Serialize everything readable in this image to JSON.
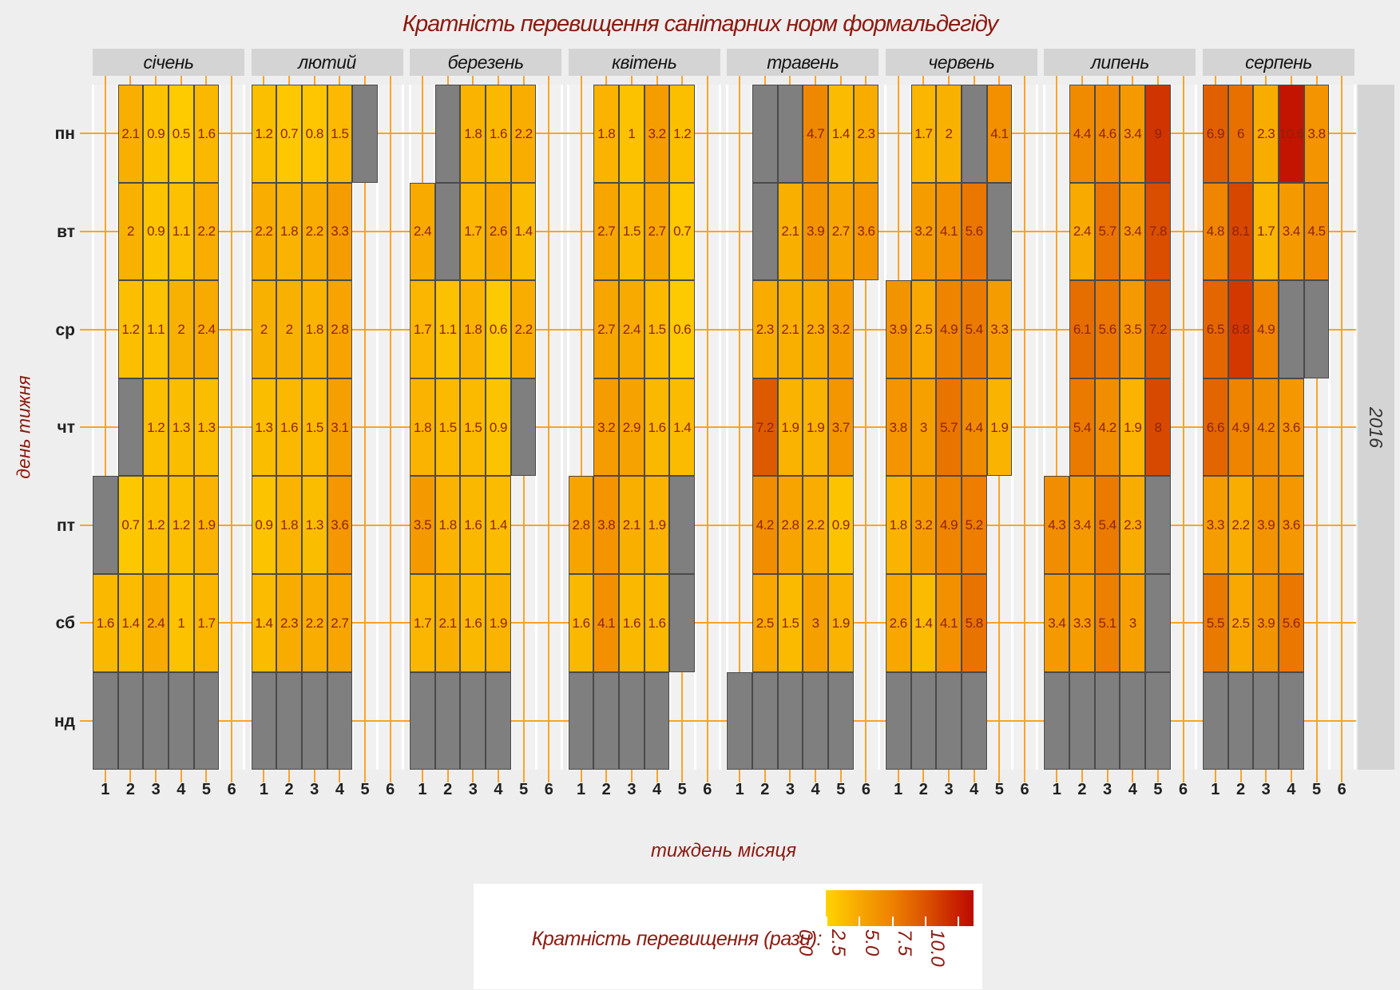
{
  "title": "Кратність перевищення санітарних норм формальдегіду",
  "y_axis_title": "день тижня",
  "x_axis_title": "тиждень місяця",
  "facet_right_label": "2016",
  "legend": {
    "title": "Кратність перевищення (рази):",
    "ticks": [
      "0.0",
      "2.5",
      "5.0",
      "7.5",
      "10.0"
    ],
    "tick_values": [
      0,
      2.5,
      5,
      7.5,
      10
    ],
    "scale_max": 11.2
  },
  "colors": {
    "background": "#efeeee",
    "panel_background": "#f2f1f1",
    "strip_background": "#d4d4d4",
    "na_cell": "#7f7f7f",
    "cell_border": "#4a4a4a",
    "grid_orange": "#faa428",
    "grid_white": "#ffffff",
    "title_color": "#8c1a10",
    "cell_text": "#8e2301",
    "axis_label": "#202020",
    "gradient_stops": [
      [
        0,
        "#ffd400"
      ],
      [
        2.5,
        "#f8a800"
      ],
      [
        5,
        "#ee8200"
      ],
      [
        7.5,
        "#dc5400"
      ],
      [
        10,
        "#c81e00"
      ],
      [
        11,
        "#be0e00"
      ]
    ]
  },
  "chart_data": {
    "type": "heatmap",
    "title": "Кратність перевищення санітарних норм формальдегіду",
    "xlabel": "тиждень місяця",
    "ylabel": "день тижня",
    "year": "2016",
    "legend_title": "Кратність перевищення (рази):",
    "legend_range": [
      0,
      10
    ],
    "day_rows": [
      "пн",
      "вт",
      "ср",
      "чт",
      "пт",
      "сб",
      "нд"
    ],
    "week_columns": [
      "1",
      "2",
      "3",
      "4",
      "5",
      "6"
    ],
    "na_note": "NA = сірі клітинки (немає даних)",
    "months": [
      {
        "name": "січень",
        "rows": [
          [
            null,
            "2.1",
            "0.9",
            "0.5",
            "1.6",
            null
          ],
          [
            null,
            "2",
            "0.9",
            "1.1",
            "2.2",
            null
          ],
          [
            null,
            "1.2",
            "1.1",
            "2",
            "2.4",
            null
          ],
          [
            null,
            "NA",
            "1.2",
            "1.3",
            "1.3",
            null
          ],
          [
            "NA",
            "0.7",
            "1.2",
            "1.2",
            "1.9",
            null
          ],
          [
            "1.6",
            "1.4",
            "2.4",
            "1",
            "1.7",
            null
          ],
          [
            "NA",
            "NA",
            "NA",
            "NA",
            "NA",
            null
          ]
        ]
      },
      {
        "name": "лютий",
        "rows": [
          [
            "1.2",
            "0.7",
            "0.8",
            "1.5",
            "NA",
            null
          ],
          [
            "2.2",
            "1.8",
            "2.2",
            "3.3",
            null,
            null
          ],
          [
            "2",
            "2",
            "1.8",
            "2.8",
            null,
            null
          ],
          [
            "1.3",
            "1.6",
            "1.5",
            "3.1",
            null,
            null
          ],
          [
            "0.9",
            "1.8",
            "1.3",
            "3.6",
            null,
            null
          ],
          [
            "1.4",
            "2.3",
            "2.2",
            "2.7",
            null,
            null
          ],
          [
            "NA",
            "NA",
            "NA",
            "NA",
            null,
            null
          ]
        ]
      },
      {
        "name": "березень",
        "rows": [
          [
            null,
            "NA",
            "1.8",
            "1.6",
            "2.2",
            null
          ],
          [
            "2.4",
            "NA",
            "1.7",
            "2.6",
            "1.4",
            null
          ],
          [
            "1.7",
            "1.1",
            "1.8",
            "0.6",
            "2.2",
            null
          ],
          [
            "1.8",
            "1.5",
            "1.5",
            "0.9",
            "NA",
            null
          ],
          [
            "3.5",
            "1.8",
            "1.6",
            "1.4",
            null,
            null
          ],
          [
            "1.7",
            "2.1",
            "1.6",
            "1.9",
            null,
            null
          ],
          [
            "NA",
            "NA",
            "NA",
            "NA",
            null,
            null
          ]
        ]
      },
      {
        "name": "квітень",
        "rows": [
          [
            null,
            "1.8",
            "1",
            "3.2",
            "1.2",
            null
          ],
          [
            null,
            "2.7",
            "1.5",
            "2.7",
            "0.7",
            null
          ],
          [
            null,
            "2.7",
            "2.4",
            "1.5",
            "0.6",
            null
          ],
          [
            null,
            "3.2",
            "2.9",
            "1.6",
            "1.4",
            null
          ],
          [
            "2.8",
            "3.8",
            "2.1",
            "1.9",
            "NA",
            null
          ],
          [
            "1.6",
            "4.1",
            "1.6",
            "1.6",
            "NA",
            null
          ],
          [
            "NA",
            "NA",
            "NA",
            "NA",
            null,
            null
          ]
        ]
      },
      {
        "name": "травень",
        "rows": [
          [
            null,
            "NA",
            "NA",
            "4.7",
            "1.4",
            "2.3"
          ],
          [
            null,
            "NA",
            "2.1",
            "3.9",
            "2.7",
            "3.6"
          ],
          [
            null,
            "2.3",
            "2.1",
            "2.3",
            "3.2",
            null
          ],
          [
            null,
            "7.2",
            "1.9",
            "1.9",
            "3.7",
            null
          ],
          [
            null,
            "4.2",
            "2.8",
            "2.2",
            "0.9",
            null
          ],
          [
            null,
            "2.5",
            "1.5",
            "3",
            "1.9",
            null
          ],
          [
            "NA",
            "NA",
            "NA",
            "NA",
            "NA",
            null
          ]
        ]
      },
      {
        "name": "червень",
        "rows": [
          [
            null,
            "1.7",
            "2",
            "NA",
            "4.1",
            null
          ],
          [
            null,
            "3.2",
            "4.1",
            "5.6",
            "NA",
            null
          ],
          [
            "3.9",
            "2.5",
            "4.9",
            "5.4",
            "3.3",
            null
          ],
          [
            "3.8",
            "3",
            "5.7",
            "4.4",
            "1.9",
            null
          ],
          [
            "1.8",
            "3.2",
            "4.9",
            "5.2",
            null,
            null
          ],
          [
            "2.6",
            "1.4",
            "4.1",
            "5.8",
            null,
            null
          ],
          [
            "NA",
            "NA",
            "NA",
            "NA",
            null,
            null
          ]
        ]
      },
      {
        "name": "липень",
        "rows": [
          [
            null,
            "4.4",
            "4.6",
            "3.4",
            "9",
            null
          ],
          [
            null,
            "2.4",
            "5.7",
            "3.4",
            "7.8",
            null
          ],
          [
            null,
            "6.1",
            "5.6",
            "3.5",
            "7.2",
            null
          ],
          [
            null,
            "5.4",
            "4.2",
            "1.9",
            "8",
            null
          ],
          [
            "4.3",
            "3.4",
            "5.4",
            "2.3",
            "NA",
            null
          ],
          [
            "3.4",
            "3.3",
            "5.1",
            "3",
            "NA",
            null
          ],
          [
            "NA",
            "NA",
            "NA",
            "NA",
            "NA",
            null
          ]
        ]
      },
      {
        "name": "серпень",
        "rows": [
          [
            "6.9",
            "6",
            "2.3",
            "10.6",
            "3.8",
            null
          ],
          [
            "4.8",
            "8.1",
            "1.7",
            "3.4",
            "4.5",
            null
          ],
          [
            "6.5",
            "8.8",
            "4.9",
            "NA",
            "NA",
            null
          ],
          [
            "6.6",
            "4.9",
            "4.2",
            "3.6",
            null,
            null
          ],
          [
            "3.3",
            "2.2",
            "3.9",
            "3.6",
            null,
            null
          ],
          [
            "5.5",
            "2.5",
            "3.9",
            "5.6",
            null,
            null
          ],
          [
            "NA",
            "NA",
            "NA",
            "NA",
            null,
            null
          ]
        ]
      }
    ]
  }
}
